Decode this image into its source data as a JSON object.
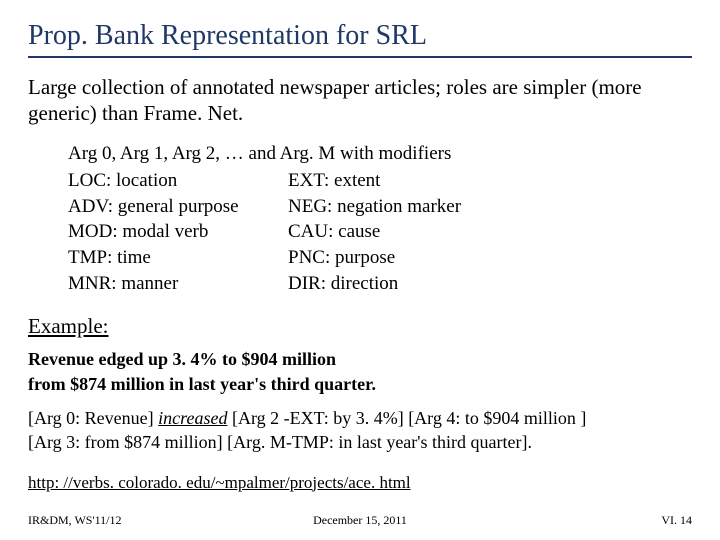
{
  "title": "Prop. Bank Representation for SRL",
  "intro": "Large collection of annotated newspaper articles; roles are simpler (more generic) than Frame. Net.",
  "args": {
    "header": "Arg 0, Arg 1, Arg 2, … and Arg. M with modifiers",
    "left": [
      "LOC: location",
      "ADV: general purpose",
      "MOD: modal verb",
      "TMP: time",
      "MNR: manner"
    ],
    "right": [
      "EXT: extent",
      "NEG: negation marker",
      "CAU: cause",
      "PNC: purpose",
      "DIR: direction"
    ]
  },
  "example": {
    "label": "Example:",
    "bold_line1": "Revenue edged up 3. 4% to $904 million",
    "bold_line2": "from $874 million in last year's third quarter.",
    "parse_a1": "[Arg 0: Revenue] ",
    "parse_verb": "increased",
    "parse_a2": " [Arg 2 -EXT: by 3. 4%] [Arg 4: to $904 million ]",
    "parse_b": "[Arg 3: from $874 million] [Arg. M-TMP: in last year's third quarter]."
  },
  "link": "http: //verbs. colorado. edu/~mpalmer/projects/ace. html",
  "footer": {
    "left": "IR&DM, WS'11/12",
    "center": "December 15, 2011",
    "right": "VI. 14"
  }
}
